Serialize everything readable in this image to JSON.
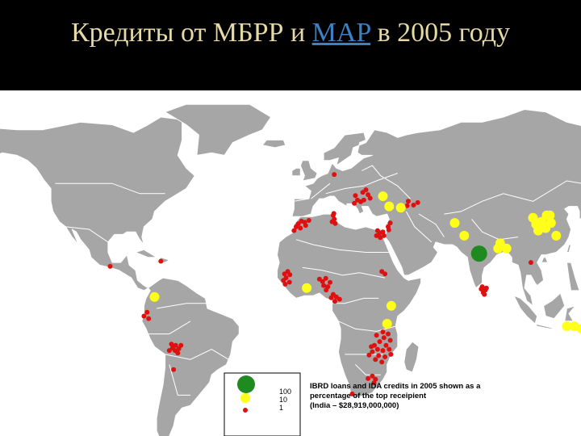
{
  "slide": {
    "title_before": "Кредиты от МБРР и ",
    "title_link": "MAP",
    "title_after": " в 2005 году",
    "background": "#000000",
    "title_color": "#e6d9a8",
    "link_color": "#3b82c4"
  },
  "map": {
    "land_color": "#a6a6a6",
    "sea_color": "#ffffff",
    "marker_colors": {
      "large": "#1f8a1f",
      "medium": "#ffff1a",
      "small": "#e01010"
    },
    "legend": {
      "sizes": [
        "100",
        "10",
        "1"
      ],
      "caption_lines": [
        "IBRD loans and IDA credits in 2005 shown as a",
        "percentage of the top receipient",
        "(India – $28,919,000,000)"
      ]
    },
    "markers": [
      {
        "size": "large",
        "lon": 78.5,
        "lat": 21.5
      },
      {
        "size": "medium",
        "lon": 104.0,
        "lat": 35.5
      },
      {
        "size": "medium",
        "lon": 108.0,
        "lat": 34.0
      },
      {
        "size": "medium",
        "lon": 112.5,
        "lat": 33.5
      },
      {
        "size": "medium",
        "lon": 110.0,
        "lat": 31.5
      },
      {
        "size": "medium",
        "lon": 106.5,
        "lat": 30.5
      },
      {
        "size": "medium",
        "lon": 105.5,
        "lat": 33.0
      },
      {
        "size": "medium",
        "lon": 112.0,
        "lat": 36.5
      },
      {
        "size": "medium",
        "lon": 110.5,
        "lat": 36.5
      },
      {
        "size": "medium",
        "lon": 115.0,
        "lat": 28.5
      },
      {
        "size": "medium",
        "lon": 67.0,
        "lat": 33.5
      },
      {
        "size": "medium",
        "lon": 71.5,
        "lat": 28.5
      },
      {
        "size": "medium",
        "lon": 88.5,
        "lat": 25.5
      },
      {
        "size": "medium",
        "lon": 87.5,
        "lat": 23.5
      },
      {
        "size": "medium",
        "lon": 91.5,
        "lat": 23.5
      },
      {
        "size": "medium",
        "lon": 37.0,
        "lat": 1.0
      },
      {
        "size": "medium",
        "lon": 35.0,
        "lat": -6.0
      },
      {
        "size": "medium",
        "lon": 33.0,
        "lat": 44.0
      },
      {
        "size": "medium",
        "lon": 36.0,
        "lat": 40.0
      },
      {
        "size": "medium",
        "lon": 41.5,
        "lat": 39.5
      },
      {
        "size": "medium",
        "lon": -3.0,
        "lat": 8.0
      },
      {
        "size": "medium",
        "lon": -75.0,
        "lat": 4.5
      },
      {
        "size": "medium",
        "lon": 120.0,
        "lat": -7.0
      },
      {
        "size": "medium",
        "lon": 123.5,
        "lat": -7.0
      },
      {
        "size": "medium",
        "lon": 127.0,
        "lat": -8.0
      },
      {
        "size": "small",
        "lon": 21.0,
        "lat": 42.5
      },
      {
        "size": "small",
        "lon": 22.5,
        "lat": 41.8
      },
      {
        "size": "small",
        "lon": 24.0,
        "lat": 42.5
      },
      {
        "size": "small",
        "lon": 20.0,
        "lat": 44.2
      },
      {
        "size": "small",
        "lon": 26.0,
        "lat": 44.6
      },
      {
        "size": "small",
        "lon": 23.5,
        "lat": 45.5
      },
      {
        "size": "small",
        "lon": 25.0,
        "lat": 46.5
      },
      {
        "size": "small",
        "lon": 19.5,
        "lat": 41.2
      },
      {
        "size": "small",
        "lon": 27.0,
        "lat": 43.2
      },
      {
        "size": "small",
        "lon": 45.0,
        "lat": 42.0
      },
      {
        "size": "small",
        "lon": 47.5,
        "lat": 40.5
      },
      {
        "size": "small",
        "lon": 49.5,
        "lat": 41.5
      },
      {
        "size": "small",
        "lon": 44.5,
        "lat": 40.3
      },
      {
        "size": "small",
        "lon": 10.0,
        "lat": 52.5
      },
      {
        "size": "small",
        "lon": -7.0,
        "lat": 33.2
      },
      {
        "size": "small",
        "lon": -5.5,
        "lat": 34.2
      },
      {
        "size": "small",
        "lon": -4.0,
        "lat": 33.8
      },
      {
        "size": "small",
        "lon": -8.0,
        "lat": 32.0
      },
      {
        "size": "small",
        "lon": -2.0,
        "lat": 34.5
      },
      {
        "size": "small",
        "lon": -6.0,
        "lat": 31.5
      },
      {
        "size": "small",
        "lon": -9.0,
        "lat": 30.5
      },
      {
        "size": "small",
        "lon": -3.5,
        "lat": 32.5
      },
      {
        "size": "small",
        "lon": 9.5,
        "lat": 36.5
      },
      {
        "size": "small",
        "lon": 10.0,
        "lat": 35.0
      },
      {
        "size": "small",
        "lon": 9.0,
        "lat": 34.0
      },
      {
        "size": "small",
        "lon": 10.5,
        "lat": 33.3
      },
      {
        "size": "small",
        "lon": 9.8,
        "lat": 37.2
      },
      {
        "size": "small",
        "lon": 30.5,
        "lat": 30.5
      },
      {
        "size": "small",
        "lon": 31.5,
        "lat": 29.5
      },
      {
        "size": "small",
        "lon": 33.0,
        "lat": 30.0
      },
      {
        "size": "small",
        "lon": 30.0,
        "lat": 28.5
      },
      {
        "size": "small",
        "lon": 31.8,
        "lat": 27.8
      },
      {
        "size": "small",
        "lon": 33.5,
        "lat": 28.5
      },
      {
        "size": "small",
        "lon": 35.5,
        "lat": 32.0
      },
      {
        "size": "small",
        "lon": 36.5,
        "lat": 33.5
      },
      {
        "size": "small",
        "lon": 35.8,
        "lat": 30.8
      },
      {
        "size": "small",
        "lon": 32.5,
        "lat": 14.5
      },
      {
        "size": "small",
        "lon": 34.0,
        "lat": 13.5
      },
      {
        "size": "small",
        "lon": -12.0,
        "lat": 14.5
      },
      {
        "size": "small",
        "lon": -13.5,
        "lat": 13.5
      },
      {
        "size": "small",
        "lon": -12.8,
        "lat": 12.0
      },
      {
        "size": "small",
        "lon": -14.0,
        "lat": 11.0
      },
      {
        "size": "small",
        "lon": -11.2,
        "lat": 10.3
      },
      {
        "size": "small",
        "lon": -13.2,
        "lat": 9.5
      },
      {
        "size": "small",
        "lon": -11.0,
        "lat": 13.2
      },
      {
        "size": "small",
        "lon": 3.0,
        "lat": 11.5
      },
      {
        "size": "small",
        "lon": 4.5,
        "lat": 10.5
      },
      {
        "size": "small",
        "lon": 6.0,
        "lat": 11.8
      },
      {
        "size": "small",
        "lon": 5.0,
        "lat": 9.0
      },
      {
        "size": "small",
        "lon": 7.0,
        "lat": 8.5
      },
      {
        "size": "small",
        "lon": 8.0,
        "lat": 10.2
      },
      {
        "size": "small",
        "lon": 6.2,
        "lat": 7.2
      },
      {
        "size": "small",
        "lon": 9.5,
        "lat": 5.5
      },
      {
        "size": "small",
        "lon": 11.0,
        "lat": 4.5
      },
      {
        "size": "small",
        "lon": 12.5,
        "lat": 3.6
      },
      {
        "size": "small",
        "lon": 8.6,
        "lat": 4.2
      },
      {
        "size": "small",
        "lon": 10.3,
        "lat": 2.8
      },
      {
        "size": "small",
        "lon": 35.5,
        "lat": -10.0
      },
      {
        "size": "small",
        "lon": 33.5,
        "lat": -11.5
      },
      {
        "size": "small",
        "lon": 36.5,
        "lat": -12.5
      },
      {
        "size": "small",
        "lon": 31.5,
        "lat": -13.0
      },
      {
        "size": "small",
        "lon": 34.5,
        "lat": -14.5
      },
      {
        "size": "small",
        "lon": 29.0,
        "lat": -14.5
      },
      {
        "size": "small",
        "lon": 30.5,
        "lat": -16.0
      },
      {
        "size": "small",
        "lon": 33.0,
        "lat": -16.5
      },
      {
        "size": "small",
        "lon": 36.0,
        "lat": -16.0
      },
      {
        "size": "small",
        "lon": 28.0,
        "lat": -17.0
      },
      {
        "size": "small",
        "lon": 31.0,
        "lat": -18.5
      },
      {
        "size": "small",
        "lon": 34.0,
        "lat": -19.0
      },
      {
        "size": "small",
        "lon": 26.5,
        "lat": -18.3
      },
      {
        "size": "small",
        "lon": 29.5,
        "lat": -20.0
      },
      {
        "size": "small",
        "lon": 32.5,
        "lat": -21.0
      },
      {
        "size": "small",
        "lon": 36.8,
        "lat": -18.0
      },
      {
        "size": "small",
        "lon": 30.0,
        "lat": -10.5
      },
      {
        "size": "small",
        "lon": 33.0,
        "lat": -9.2
      },
      {
        "size": "small",
        "lon": 27.5,
        "lat": -15.0
      },
      {
        "size": "small",
        "lon": 28.0,
        "lat": -26.5
      },
      {
        "size": "small",
        "lon": 29.5,
        "lat": -27.8
      },
      {
        "size": "small",
        "lon": 26.0,
        "lat": -27.5
      },
      {
        "size": "small",
        "lon": 28.8,
        "lat": -29.2
      },
      {
        "size": "small",
        "lon": 18.5,
        "lat": -33.5
      },
      {
        "size": "small",
        "lon": 80.0,
        "lat": 8.5
      },
      {
        "size": "small",
        "lon": 81.5,
        "lat": 7.2
      },
      {
        "size": "small",
        "lon": 80.5,
        "lat": 6.2
      },
      {
        "size": "small",
        "lon": 79.5,
        "lat": 7.6
      },
      {
        "size": "small",
        "lon": 81.0,
        "lat": 5.5
      },
      {
        "size": "small",
        "lon": 82.0,
        "lat": 8.0
      },
      {
        "size": "small",
        "lon": -65.0,
        "lat": -14.5
      },
      {
        "size": "small",
        "lon": -66.5,
        "lat": -15.5
      },
      {
        "size": "small",
        "lon": -63.5,
        "lat": -15.8
      },
      {
        "size": "small",
        "lon": -65.3,
        "lat": -16.5
      },
      {
        "size": "small",
        "lon": -68.0,
        "lat": -16.5
      },
      {
        "size": "small",
        "lon": -62.5,
        "lat": -14.5
      },
      {
        "size": "small",
        "lon": -67.0,
        "lat": -14.0
      },
      {
        "size": "small",
        "lon": -64.0,
        "lat": -17.5
      },
      {
        "size": "small",
        "lon": -66.0,
        "lat": -24.0
      },
      {
        "size": "small",
        "lon": -78.5,
        "lat": -1.5
      },
      {
        "size": "small",
        "lon": -80.0,
        "lat": -3.0
      },
      {
        "size": "small",
        "lon": -77.8,
        "lat": -4.0
      },
      {
        "size": "small",
        "lon": -72.0,
        "lat": 18.5
      },
      {
        "size": "small",
        "lon": -96.0,
        "lat": 16.5
      },
      {
        "size": "small",
        "lon": 103.0,
        "lat": 18.0
      }
    ]
  }
}
